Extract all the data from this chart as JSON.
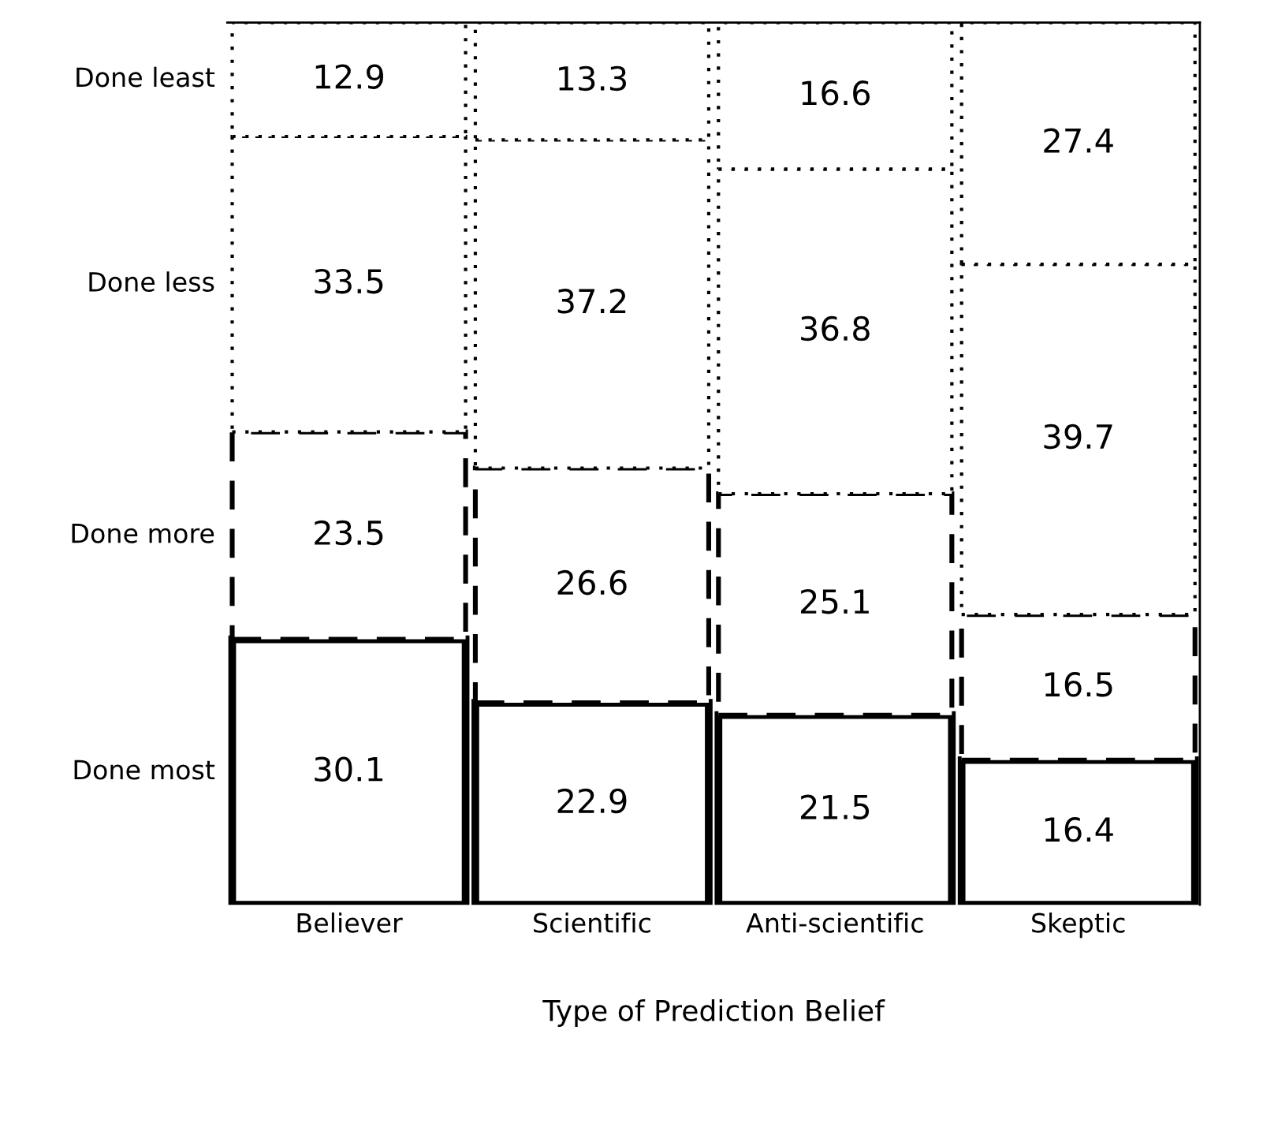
{
  "chart_data": {
    "type": "bar",
    "stacked": true,
    "xlabel": "Type of Prediction Belief",
    "categories": [
      "Believer",
      "Scientific",
      "Anti-scientific",
      "Skeptic"
    ],
    "data_labels": true,
    "legend": false,
    "grid": false,
    "tick_labels": "x",
    "series": [
      {
        "name": "Done most",
        "color": "#ffffff",
        "line_style": "solid",
        "values": [
          30.1,
          22.9,
          21.5,
          16.4
        ]
      },
      {
        "name": "Done more",
        "color": "#ffffff",
        "line_style": "dashed",
        "values": [
          23.5,
          26.6,
          25.1,
          16.5
        ]
      },
      {
        "name": "Done less",
        "color": "#ffffff",
        "line_style": "dotted",
        "values": [
          33.5,
          37.2,
          36.8,
          39.7
        ]
      },
      {
        "name": "Done least",
        "color": "#ffffff",
        "line_style": "dotted",
        "values": [
          12.9,
          13.3,
          16.6,
          27.4
        ]
      }
    ]
  }
}
